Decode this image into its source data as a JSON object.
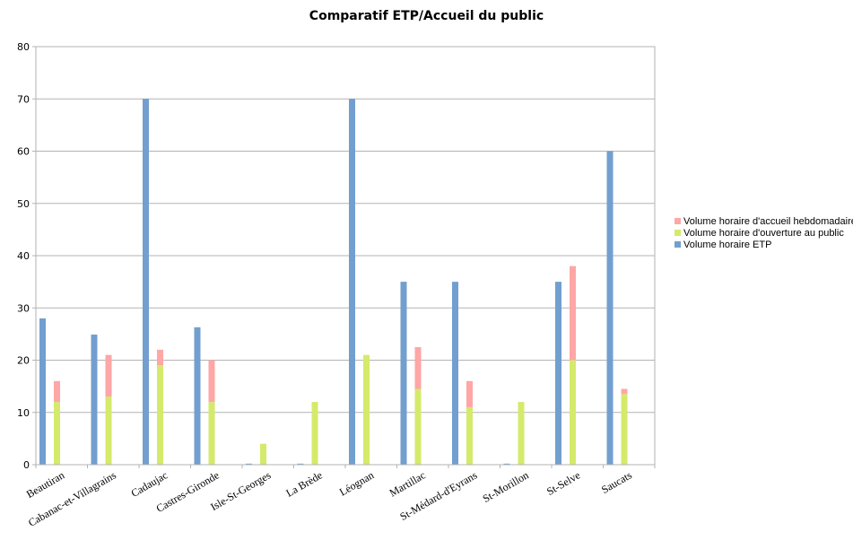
{
  "chart_data": {
    "type": "bar",
    "title": "Comparatif ETP/Accueil du public",
    "xlabel": "",
    "ylabel": "",
    "ylim": [
      0,
      80
    ],
    "yticks": [
      0,
      10,
      20,
      30,
      40,
      50,
      60,
      70,
      80
    ],
    "grid": true,
    "legend_position": "right",
    "categories": [
      "Beautiran",
      "Cabanac-et-Villagrains",
      "Cadaujac",
      "Castres-Gironde",
      "Isle-St-Georges",
      "La Brède",
      "Léognan",
      "Martillac",
      "St-Médard-d'Eyrans",
      "St-Morillon",
      "St-Selve",
      "Saucats"
    ],
    "series": [
      {
        "name": "Volume horaire ETP",
        "group": "etp",
        "color": "#729fcf",
        "values": [
          28,
          24.9,
          70,
          26.3,
          0.2,
          0.2,
          70,
          35,
          35,
          0.2,
          35,
          60
        ]
      },
      {
        "name": "Volume horaire d'ouverture au public",
        "group": "stack",
        "color": "#d4ea6b",
        "values": [
          12,
          13,
          19,
          12,
          4,
          12,
          21,
          14.5,
          11,
          12,
          20,
          13.5
        ]
      },
      {
        "name": "Volume horaire d'accueil hebdomadaire",
        "group": "stack",
        "color": "#ffa6a6",
        "values": [
          4,
          8,
          3,
          8,
          0,
          0,
          0,
          8,
          5,
          0,
          18,
          1
        ]
      }
    ],
    "legend_order": [
      "Volume horaire d'accueil hebdomadaire",
      "Volume horaire d'ouverture au public",
      "Volume horaire ETP"
    ]
  }
}
